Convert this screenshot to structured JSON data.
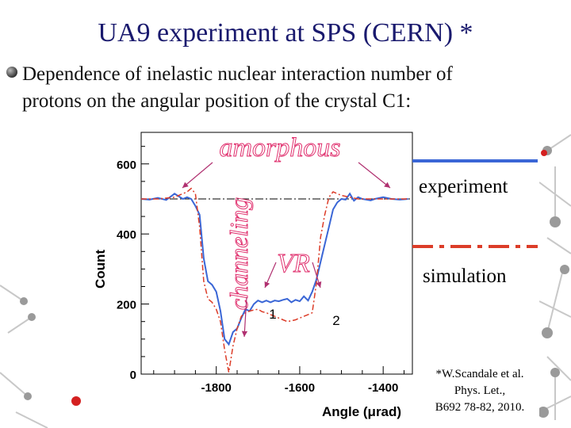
{
  "title": "UA9 experiment at SPS (CERN) *",
  "bullet_text_line1": "Dependence of  inelastic nuclear interaction number of",
  "bullet_text_line2": "protons on the angular position of the crystal C1:",
  "citation": {
    "line1": "*W.Scandale et al.",
    "line2": "Phys. Let.,",
    "line3": "B692 78-82, 2010."
  },
  "chart_data": {
    "type": "line",
    "xlabel": "Angle  (μrad)",
    "ylabel": "Count",
    "xlim": [
      -1980,
      -1330
    ],
    "ylim": [
      0,
      690
    ],
    "xticks": [
      -1800,
      -1600,
      -1400
    ],
    "xtick_labels": [
      "-1800",
      "-1600",
      "-1400"
    ],
    "yticks": [
      0,
      200,
      400,
      600
    ],
    "ytick_labels": [
      "0",
      "200",
      "400",
      "600"
    ],
    "grid": false,
    "reference_level": 500,
    "series": [
      {
        "name": "experiment",
        "color": "#3a66d6",
        "style": "solid",
        "x": [
          -1980,
          -1960,
          -1940,
          -1920,
          -1900,
          -1880,
          -1870,
          -1860,
          -1850,
          -1840,
          -1830,
          -1820,
          -1810,
          -1800,
          -1790,
          -1780,
          -1770,
          -1760,
          -1750,
          -1740,
          -1730,
          -1720,
          -1710,
          -1700,
          -1690,
          -1680,
          -1670,
          -1660,
          -1650,
          -1640,
          -1630,
          -1620,
          -1610,
          -1600,
          -1590,
          -1580,
          -1570,
          -1560,
          -1550,
          -1540,
          -1530,
          -1520,
          -1510,
          -1500,
          -1490,
          -1480,
          -1470,
          -1460,
          -1450,
          -1440,
          -1430,
          -1420,
          -1400,
          -1380,
          -1360,
          -1340
        ],
        "y": [
          500,
          498,
          503,
          497,
          515,
          500,
          505,
          500,
          480,
          455,
          330,
          265,
          255,
          235,
          180,
          100,
          85,
          120,
          130,
          160,
          185,
          180,
          200,
          210,
          205,
          210,
          205,
          210,
          208,
          212,
          215,
          205,
          212,
          208,
          222,
          210,
          235,
          270,
          320,
          370,
          420,
          470,
          490,
          500,
          498,
          515,
          495,
          505,
          500,
          498,
          496,
          500,
          505,
          500,
          498,
          500
        ]
      },
      {
        "name": "simulation",
        "color": "#dc3c28",
        "style": "dashdot",
        "x": [
          -1980,
          -1940,
          -1900,
          -1870,
          -1860,
          -1850,
          -1840,
          -1830,
          -1820,
          -1810,
          -1800,
          -1790,
          -1780,
          -1770,
          -1760,
          -1750,
          -1740,
          -1730,
          -1720,
          -1710,
          -1700,
          -1690,
          -1680,
          -1670,
          -1660,
          -1650,
          -1640,
          -1630,
          -1620,
          -1610,
          -1600,
          -1590,
          -1580,
          -1570,
          -1560,
          -1550,
          -1540,
          -1530,
          -1520,
          -1500,
          -1460,
          -1400,
          -1340
        ],
        "y": [
          500,
          500,
          505,
          520,
          530,
          515,
          420,
          265,
          215,
          205,
          185,
          150,
          70,
          5,
          80,
          130,
          165,
          175,
          180,
          183,
          185,
          178,
          175,
          170,
          165,
          160,
          155,
          150,
          152,
          155,
          160,
          165,
          170,
          175,
          260,
          390,
          455,
          505,
          520,
          510,
          500,
          500,
          500
        ]
      }
    ],
    "annotations": [
      {
        "text": "amorphous",
        "color": "#e0306e"
      },
      {
        "text": "channeling",
        "color": "#e0306e"
      },
      {
        "text": "VR",
        "color": "#e0306e"
      },
      {
        "text": "1",
        "color": "#000000"
      },
      {
        "text": "2",
        "color": "#000000"
      }
    ]
  }
}
